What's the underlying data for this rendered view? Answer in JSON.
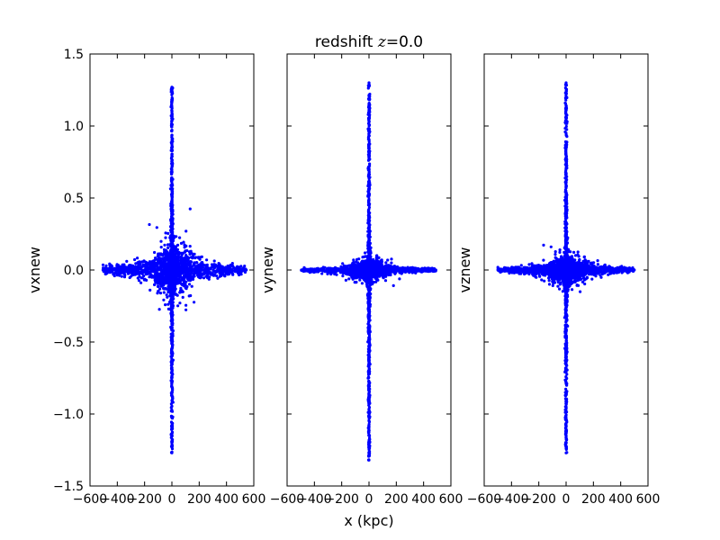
{
  "figure": {
    "title_prefix": "redshift ",
    "title_var": "z",
    "title_eq": "=",
    "title_value": "0.0",
    "xlabel": "x (kpc)",
    "colors": {
      "points": "#0000ff",
      "axes": "#000000",
      "background": "#ffffff"
    }
  },
  "chart_data": [
    {
      "type": "scatter",
      "series": [
        {
          "color": "#0000ff",
          "marker": "dot"
        }
      ],
      "xlabel": "",
      "ylabel": "vxnew",
      "xlim": [
        -600,
        600
      ],
      "ylim": [
        -1.5,
        1.5
      ],
      "xticks": [
        -600,
        -400,
        -200,
        0,
        200,
        400,
        600
      ],
      "xtick_labels": [
        "−600",
        "−400",
        "−200",
        "0",
        "200",
        "400",
        "600"
      ],
      "yticks": [
        -1.5,
        -1.0,
        -0.5,
        0.0,
        0.5,
        1.0,
        1.5
      ],
      "ytick_labels": [
        "−1.5",
        "−1.0",
        "−0.5",
        "0.0",
        "0.5",
        "1.0",
        "1.5"
      ],
      "show_ytick_labels": true,
      "grid": false,
      "distribution": {
        "x_extent": [
          -505,
          545
        ],
        "y_extent": [
          -1.27,
          1.27
        ],
        "core_halfwidth_x": 25,
        "halo_x": 240,
        "halo_y": 0.11
      }
    },
    {
      "type": "scatter",
      "series": [
        {
          "color": "#0000ff",
          "marker": "dot"
        }
      ],
      "xlabel": "x (kpc)",
      "ylabel": "vynew",
      "xlim": [
        -600,
        600
      ],
      "ylim": [
        -1.5,
        1.5
      ],
      "xticks": [
        -600,
        -400,
        -200,
        0,
        200,
        400,
        600
      ],
      "xtick_labels": [
        "−600",
        "−400",
        "−200",
        "0",
        "200",
        "400",
        "600"
      ],
      "yticks": [
        -1.5,
        -1.0,
        -0.5,
        0.0,
        0.5,
        1.0,
        1.5
      ],
      "ytick_labels": [
        "−1.5",
        "−1.0",
        "−0.5",
        "0.0",
        "0.5",
        "1.0",
        "1.5"
      ],
      "show_ytick_labels": false,
      "grid": false,
      "distribution": {
        "x_extent": [
          -495,
          490
        ],
        "y_extent": [
          -1.32,
          1.3
        ],
        "core_halfwidth_x": 25,
        "halo_x": 230,
        "halo_y": 0.04
      }
    },
    {
      "type": "scatter",
      "series": [
        {
          "color": "#0000ff",
          "marker": "dot"
        }
      ],
      "xlabel": "",
      "ylabel": "vznew",
      "xlim": [
        -600,
        600
      ],
      "ylim": [
        -1.5,
        1.5
      ],
      "xticks": [
        -600,
        -400,
        -200,
        0,
        200,
        400,
        600
      ],
      "xtick_labels": [
        "−600",
        "−400",
        "−200",
        "0",
        "200",
        "400",
        "600"
      ],
      "yticks": [
        -1.5,
        -1.0,
        -0.5,
        0.0,
        0.5,
        1.0,
        1.5
      ],
      "ytick_labels": [
        "−1.5",
        "−1.0",
        "−0.5",
        "0.0",
        "0.5",
        "1.0",
        "1.5"
      ],
      "show_ytick_labels": false,
      "grid": false,
      "distribution": {
        "x_extent": [
          -500,
          500
        ],
        "y_extent": [
          -1.27,
          1.3
        ],
        "core_halfwidth_x": 25,
        "halo_x": 230,
        "halo_y": 0.06
      }
    }
  ]
}
